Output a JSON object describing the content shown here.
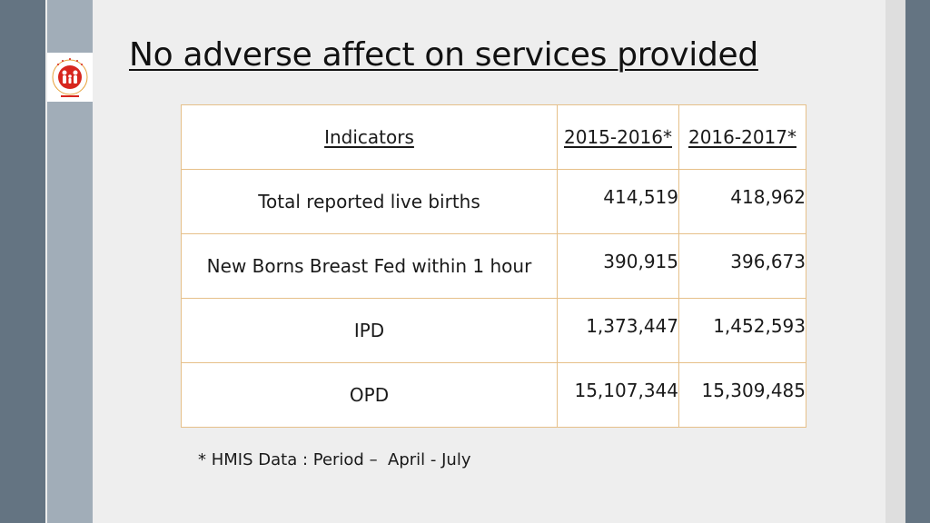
{
  "slide": {
    "title": "No adverse affect on services provided",
    "logo": {
      "icon": "national-health-mission-logo",
      "text": "NATIONAL HEALTH MISSION",
      "colors": {
        "red": "#d7261e",
        "gold": "#e8a33b"
      }
    },
    "table": {
      "headers": [
        "Indicators",
        "2015-2016*",
        "2016-2017*"
      ],
      "rows": [
        {
          "indicator": "Total reported live births",
          "y2015_2016": "414,519",
          "y2016_2017": "418,962"
        },
        {
          "indicator": "New Borns Breast Fed within 1 hour",
          "y2015_2016": "390,915",
          "y2016_2017": "396,673"
        },
        {
          "indicator": "IPD",
          "y2015_2016": "1,373,447",
          "y2016_2017": "1,452,593"
        },
        {
          "indicator": "OPD",
          "y2015_2016": "15,107,344",
          "y2016_2017": "15,309,485"
        }
      ]
    },
    "footnote": "* HMIS Data : Period –  April - July",
    "colors": {
      "sidebar_dark": "#647482",
      "sidebar_light": "#a1adb8",
      "table_border": "#e6c089",
      "background": "#eeeeee"
    }
  }
}
